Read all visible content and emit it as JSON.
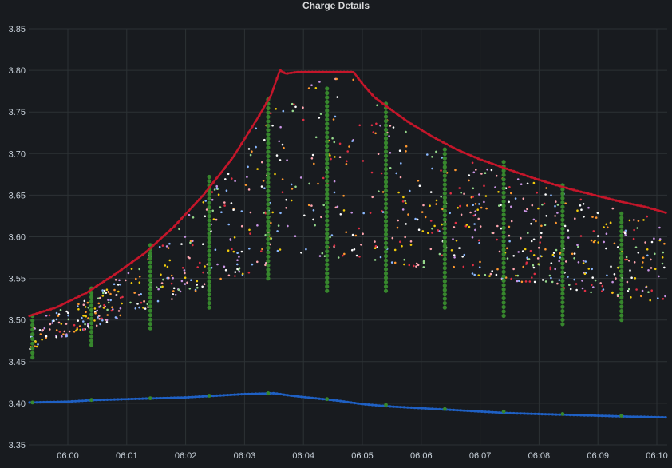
{
  "chart_data": {
    "type": "scatter",
    "title": "Charge Details",
    "xlabel": "",
    "ylabel": "",
    "ylim": [
      3.35,
      3.85
    ],
    "y_ticks": [
      "3.35",
      "3.40",
      "3.45",
      "3.50",
      "3.55",
      "3.60",
      "3.65",
      "3.70",
      "3.75",
      "3.80",
      "3.85"
    ],
    "x_ticks": [
      "06:00",
      "06:01",
      "06:02",
      "06:03",
      "06:04",
      "06:05",
      "06:06",
      "06:07",
      "06:08",
      "06:09",
      "06:10"
    ],
    "grid": true,
    "legend": "none",
    "colors": {
      "upper_line": "#c4162a",
      "lower_line": "#1f60c4",
      "green_points": "#37872d",
      "cells": [
        "#ffffff",
        "#8ab8ff",
        "#ff9830",
        "#f2cc0c",
        "#e02f44",
        "#96d98d",
        "#ca95e5",
        "#ffa6b0"
      ]
    },
    "series": [
      {
        "kind": "line",
        "x": [
          -0.65,
          -0.2,
          0.3,
          0.8,
          1.3,
          1.8,
          2.3,
          2.8,
          3.2,
          3.45,
          3.6,
          3.7,
          3.9,
          4.2,
          4.5,
          4.85,
          5.0,
          5.2,
          5.5,
          5.8,
          6.2,
          6.6,
          7.0,
          7.4,
          7.8,
          8.2,
          8.6,
          9.0,
          9.4,
          9.8,
          10.15
        ],
        "y": [
          3.505,
          3.515,
          3.532,
          3.555,
          3.58,
          3.612,
          3.65,
          3.695,
          3.74,
          3.77,
          3.8,
          3.796,
          3.798,
          3.798,
          3.798,
          3.798,
          3.784,
          3.768,
          3.752,
          3.737,
          3.72,
          3.705,
          3.693,
          3.683,
          3.673,
          3.664,
          3.656,
          3.649,
          3.642,
          3.636,
          3.629
        ]
      },
      {
        "kind": "line",
        "x": [
          -0.65,
          0,
          0.5,
          1,
          1.5,
          2,
          2.5,
          3,
          3.5,
          3.8,
          4.2,
          4.6,
          5,
          5.5,
          6,
          6.5,
          7,
          7.5,
          8,
          8.5,
          9,
          9.5,
          10.15
        ],
        "y": [
          3.401,
          3.402,
          3.404,
          3.405,
          3.406,
          3.407,
          3.409,
          3.411,
          3.412,
          3.409,
          3.406,
          3.403,
          3.399,
          3.396,
          3.394,
          3.392,
          3.39,
          3.388,
          3.387,
          3.386,
          3.385,
          3.384,
          3.383
        ]
      },
      {
        "kind": "scatter",
        "x": [
          -0.6,
          0.4,
          1.4,
          2.4,
          3.4,
          4.4,
          5.4,
          6.4,
          7.4,
          8.4,
          9.4
        ],
        "y_min": [
          3.455,
          3.47,
          3.49,
          3.515,
          3.55,
          3.535,
          3.535,
          3.515,
          3.505,
          3.495,
          3.5
        ],
        "y_max": [
          3.505,
          3.538,
          3.59,
          3.672,
          3.765,
          3.778,
          3.76,
          3.705,
          3.69,
          3.662,
          3.628
        ]
      },
      {
        "kind": "scatter",
        "x": [
          -0.6,
          0.4,
          1.4,
          2.4,
          3.4,
          4.4,
          5.4,
          6.4,
          7.4,
          8.4,
          9.4
        ],
        "y": [
          3.401,
          3.404,
          3.406,
          3.409,
          3.412,
          3.405,
          3.398,
          3.393,
          3.39,
          3.387,
          3.385
        ]
      }
    ]
  }
}
